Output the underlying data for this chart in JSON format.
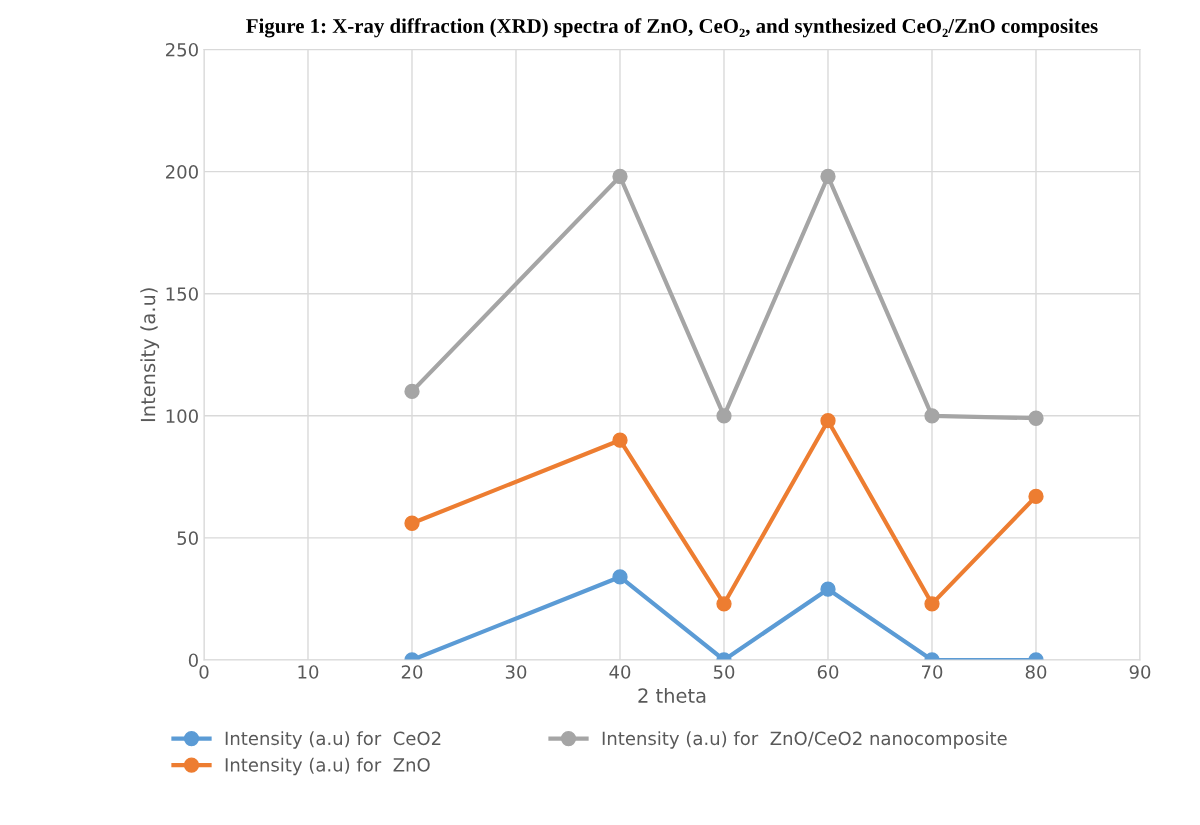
{
  "chart_data": {
    "type": "line",
    "title": "Figure 1: X-ray diffraction (XRD) spectra of ZnO, CeO₂, and synthesized CeO₂/ZnO composites",
    "xlabel": "2 theta",
    "ylabel": "Intensity (a.u)",
    "x": [
      20,
      40,
      50,
      60,
      70,
      80
    ],
    "series": [
      {
        "name": "Intensity (a.u) for  CeO2",
        "color": "#5b9bd5",
        "values": [
          0,
          34,
          0,
          29,
          0,
          0
        ]
      },
      {
        "name": "Intensity (a.u) for  ZnO",
        "color": "#ed7d31",
        "values": [
          56,
          90,
          23,
          98,
          23,
          67
        ]
      },
      {
        "name": "Intensity (a.u) for  ZnO/CeO2 nanocomposite",
        "color": "#a5a5a5",
        "values": [
          110,
          198,
          100,
          198,
          100,
          99
        ]
      }
    ],
    "xlim": [
      0,
      90
    ],
    "xticks": [
      0,
      10,
      20,
      30,
      40,
      50,
      60,
      70,
      80,
      90
    ],
    "ylim": [
      0,
      250
    ],
    "yticks": [
      0,
      50,
      100,
      150,
      200,
      250
    ],
    "grid": true,
    "legend": "bottom",
    "marker": "circle",
    "line_style": "solid"
  }
}
